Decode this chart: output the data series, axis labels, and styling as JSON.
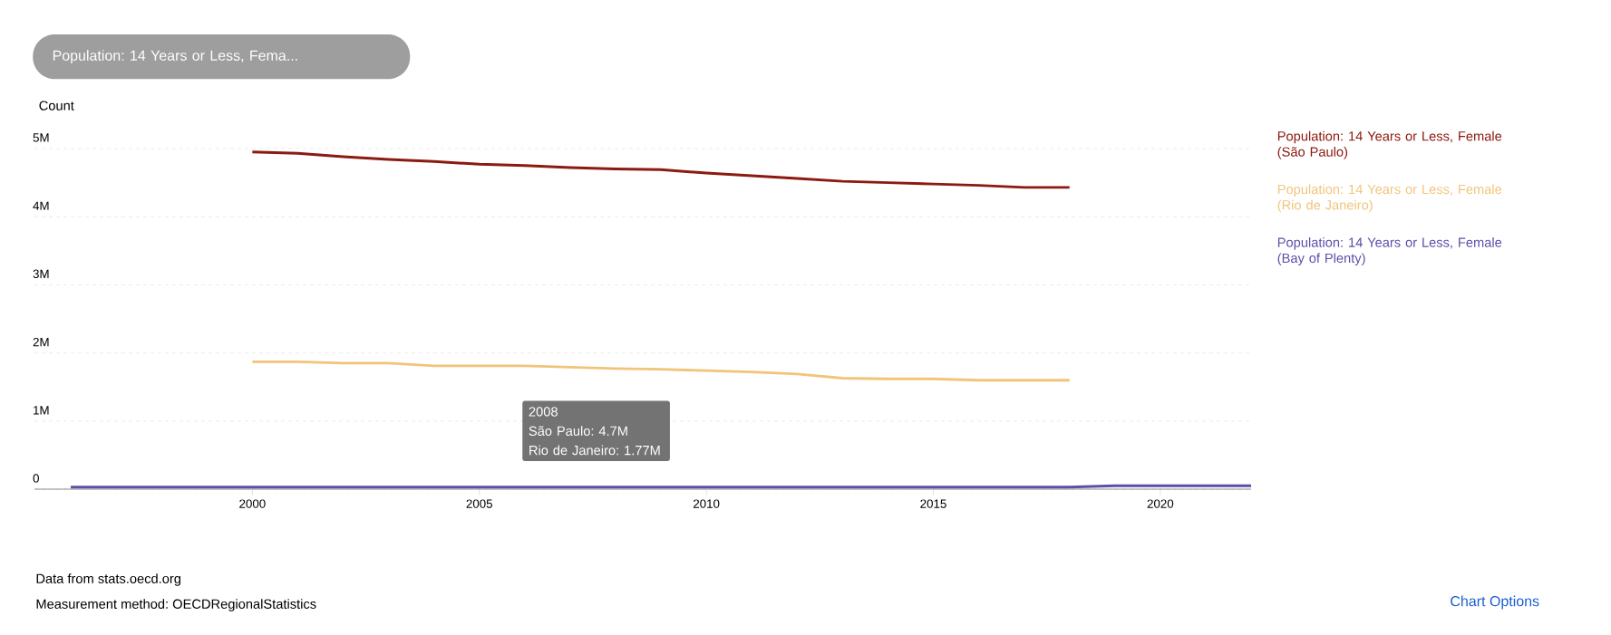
{
  "chart_data": {
    "type": "line",
    "ylabel": "Count",
    "series": [
      {
        "name": "Population: 14 Years or Less, Female (São Paulo)",
        "color": "#8b1a10",
        "x": [
          2000,
          2001,
          2002,
          2003,
          2004,
          2005,
          2006,
          2007,
          2008,
          2009,
          2010,
          2011,
          2012,
          2013,
          2014,
          2015,
          2016,
          2017,
          2018
        ],
        "values": [
          4.95,
          4.93,
          4.88,
          4.84,
          4.81,
          4.77,
          4.75,
          4.72,
          4.7,
          4.69,
          4.64,
          4.6,
          4.56,
          4.52,
          4.5,
          4.48,
          4.46,
          4.43,
          4.43
        ]
      },
      {
        "name": "Population: 14 Years or Less, Female (Rio de Janeiro)",
        "color": "#f2c47a",
        "x": [
          2000,
          2001,
          2002,
          2003,
          2004,
          2005,
          2006,
          2007,
          2008,
          2009,
          2010,
          2011,
          2012,
          2013,
          2014,
          2015,
          2016,
          2017,
          2018
        ],
        "values": [
          1.87,
          1.87,
          1.85,
          1.85,
          1.81,
          1.81,
          1.81,
          1.79,
          1.77,
          1.76,
          1.74,
          1.72,
          1.69,
          1.63,
          1.62,
          1.62,
          1.6,
          1.6,
          1.6
        ]
      },
      {
        "name": "Population: 14 Years or Less, Female (Bay of Plenty)",
        "color": "#5c4fa8",
        "x": [
          1996,
          1997,
          1998,
          1999,
          2000,
          2001,
          2002,
          2003,
          2004,
          2005,
          2006,
          2007,
          2008,
          2009,
          2010,
          2011,
          2012,
          2013,
          2014,
          2015,
          2016,
          2017,
          2018,
          2019,
          2020,
          2021,
          2022
        ],
        "values": [
          0.03,
          0.03,
          0.03,
          0.03,
          0.03,
          0.03,
          0.03,
          0.03,
          0.03,
          0.03,
          0.03,
          0.03,
          0.03,
          0.03,
          0.03,
          0.03,
          0.03,
          0.03,
          0.03,
          0.03,
          0.03,
          0.03,
          0.03,
          0.05,
          0.05,
          0.05,
          0.05
        ]
      }
    ],
    "xlim": [
      1995.2,
      2022
    ],
    "xticks": [
      2000,
      2005,
      2010,
      2015,
      2020
    ],
    "ylim": [
      0,
      5
    ],
    "yticks": [
      0,
      {
        "value": 1,
        "label": "1M"
      },
      {
        "value": 2,
        "label": "2M"
      },
      {
        "value": 3,
        "label": "3M"
      },
      {
        "value": 4,
        "label": "4M"
      },
      {
        "value": 5,
        "label": "5M"
      }
    ],
    "grid": "y",
    "legend": "right",
    "marker": "none",
    "line_style": "solid",
    "annotations": [
      "Population: 14 Years or Less, Fema...",
      "2008",
      "São Paulo: 4.7M",
      "Rio de Janeiro: 1.77M",
      "Data from stats.oecd.org",
      "Measurement method: OECDRegionalStatistics",
      "Chart Options"
    ]
  }
}
